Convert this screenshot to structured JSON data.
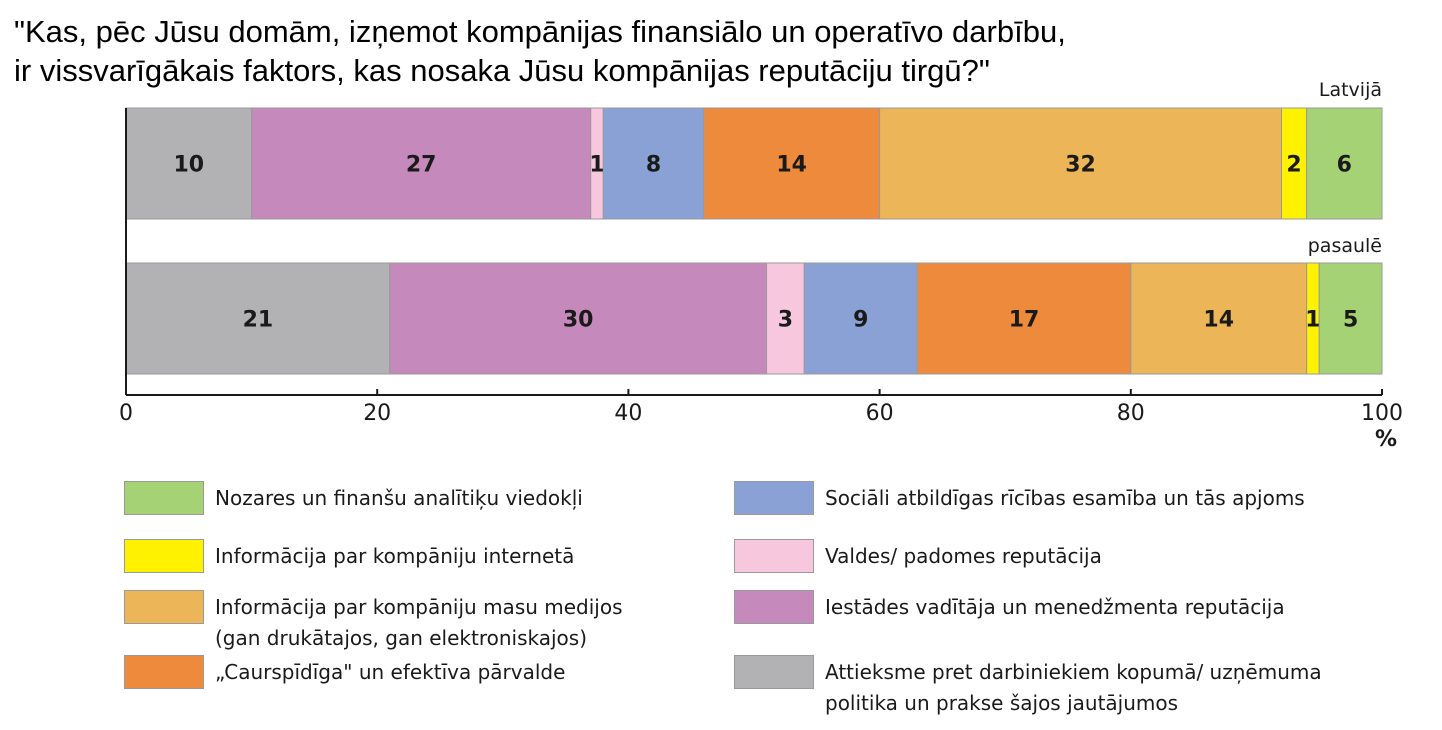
{
  "title_lines": [
    "\"Kas, pēc Jūsu domām, izņemot kompānijas finansiālo un operatīvo darbību,",
    "ir vissvarīgākais faktors, kas nosaka Jūsu kompānijas reputāciju tirgū?\""
  ],
  "chart_data": {
    "type": "bar",
    "orientation": "horizontal",
    "stacked": true,
    "categories": [
      "Latvijā",
      "pasaulē"
    ],
    "series": [
      {
        "name": "Attieksme pret darbiniekiem kopumā/ uzņēmuma politika un prakse šajos jautājumos",
        "color": "#b2b2b4",
        "values": [
          10,
          21
        ]
      },
      {
        "name": "Iestādes vadītāja un menedžmenta reputācija",
        "color": "#c689bc",
        "values": [
          27,
          30
        ]
      },
      {
        "name": "Valdes/ padomes reputācija",
        "color": "#f6c7dd",
        "values": [
          1,
          3
        ]
      },
      {
        "name": "Sociāli atbildīgas rīcības esamība un tās apjoms",
        "color": "#8aa1d5",
        "values": [
          8,
          9
        ]
      },
      {
        "name": "„Caurspīdīga\" un efektīva pārvalde",
        "color": "#ee8a3c",
        "values": [
          14,
          17
        ]
      },
      {
        "name": "Informācija par kompāniju masu medijos (gan drukātajos, gan elektroniskajos)",
        "color": "#ebb558",
        "values": [
          32,
          14
        ]
      },
      {
        "name": "Informācija par kompāniju internetā",
        "color": "#fff200",
        "values": [
          2,
          1
        ]
      },
      {
        "name": "Nozares un finanšu analītiķu viedokļi",
        "color": "#a6d276",
        "values": [
          6,
          5
        ]
      }
    ],
    "xlim": [
      0,
      100
    ],
    "xticks": [
      0,
      20,
      40,
      60,
      80,
      100
    ],
    "xlabel": "%",
    "grid": false,
    "legend": {
      "position": "bottom",
      "columns": [
        [
          {
            "label": "Nozares un finanšu analītiķu viedokļi",
            "color": "#a6d276"
          },
          {
            "label": "Informācija par kompāniju internetā",
            "color": "#fff200"
          },
          {
            "label": "Informācija par kompāniju masu medijos\n(gan drukātajos, gan elektroniskajos)",
            "color": "#ebb558"
          },
          {
            "label": "„Caurspīdīga\" un efektīva pārvalde",
            "color": "#ee8a3c"
          }
        ],
        [
          {
            "label": "Sociāli atbildīgas rīcības esamība un tās apjoms",
            "color": "#8aa1d5"
          },
          {
            "label": "Valdes/ padomes reputācija",
            "color": "#f6c7dd"
          },
          {
            "label": "Iestādes vadītāja un menedžmenta reputācija",
            "color": "#c689bc"
          },
          {
            "label": "Attieksme pret darbiniekiem kopumā/ uzņēmuma\npolitika un prakse šajos jautājumos",
            "color": "#b2b2b4"
          }
        ]
      ]
    }
  }
}
